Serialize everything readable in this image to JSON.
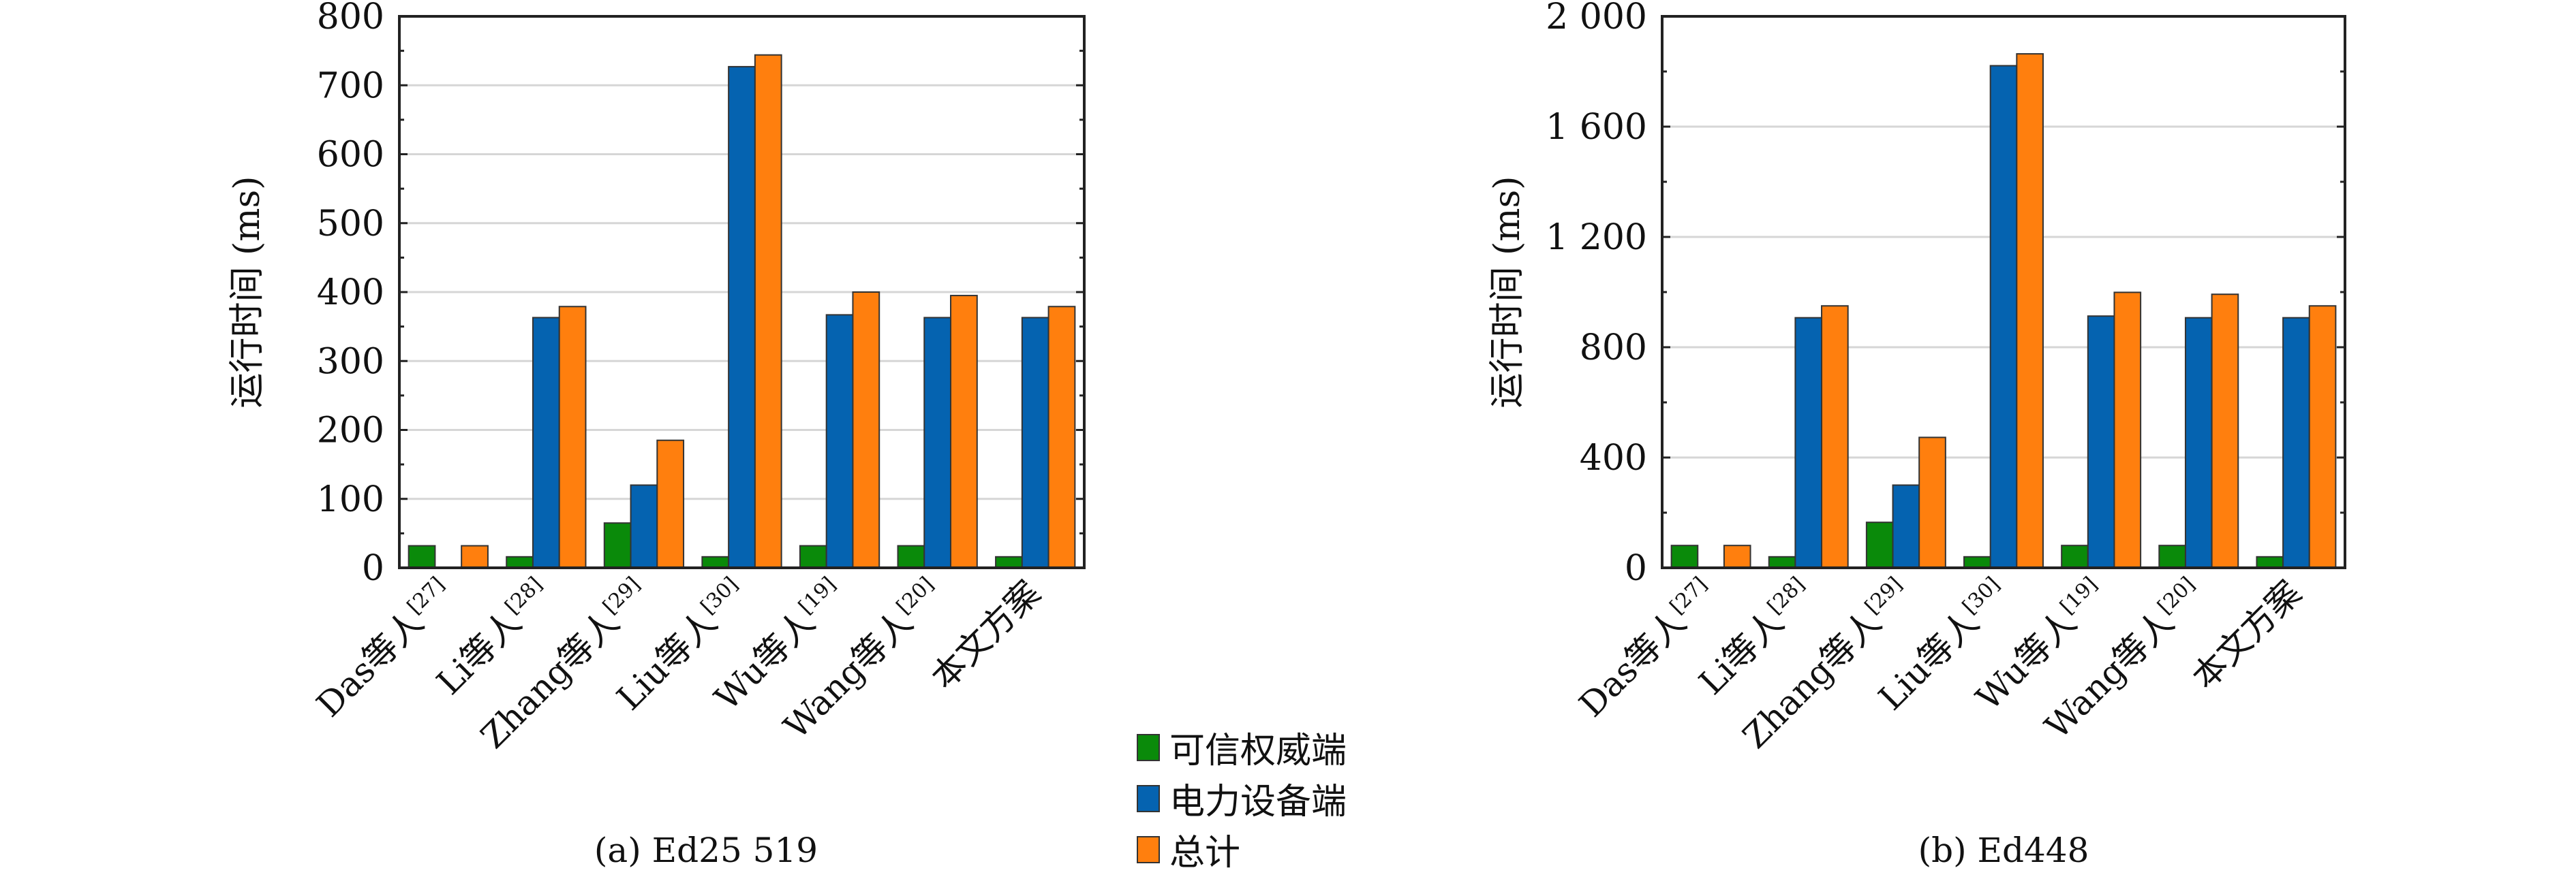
{
  "chart_data": [
    {
      "type": "bar",
      "caption": "(a) Ed25 519",
      "ylabel": "运行时间 (ms)",
      "xlabel": "",
      "ylim": [
        0,
        800
      ],
      "yticks": [
        0,
        100,
        200,
        300,
        400,
        500,
        600,
        700,
        800
      ],
      "ytick_labels": [
        "0",
        "100",
        "200",
        "300",
        "400",
        "500",
        "600",
        "700",
        "800"
      ],
      "minor_step": 50,
      "grid": true,
      "categories": [
        "Das等人[27]",
        "Li等人[28]",
        "Zhang等人[29]",
        "Liu等人[30]",
        "Wu等人[19]",
        "Wang等人[20]",
        "本文方案"
      ],
      "series": [
        {
          "name": "可信权威端",
          "values": [
            32,
            16,
            65,
            16,
            32,
            32,
            16
          ]
        },
        {
          "name": "电力设备端",
          "values": [
            0,
            363,
            120,
            727,
            367,
            363,
            363
          ]
        },
        {
          "name": "总计",
          "values": [
            32,
            379,
            185,
            744,
            400,
            395,
            379
          ]
        }
      ]
    },
    {
      "type": "bar",
      "caption": "(b) Ed448",
      "ylabel": "运行时间 (ms)",
      "xlabel": "",
      "ylim": [
        0,
        2000
      ],
      "yticks": [
        0,
        400,
        800,
        1200,
        1600,
        2000
      ],
      "ytick_labels": [
        "0",
        "400",
        "800",
        "1 200",
        "1 600",
        "2 000"
      ],
      "minor_step": 200,
      "grid": true,
      "categories": [
        "Das等人[27]",
        "Li等人[28]",
        "Zhang等人[29]",
        "Liu等人[30]",
        "Wu等人[19]",
        "Wang等人[20]",
        "本文方案"
      ],
      "series": [
        {
          "name": "可信权威端",
          "values": [
            81,
            40,
            165,
            40,
            81,
            81,
            40
          ]
        },
        {
          "name": "电力设备端",
          "values": [
            0,
            907,
            300,
            1821,
            913,
            907,
            907
          ]
        },
        {
          "name": "总计",
          "values": [
            81,
            950,
            473,
            1864,
            999,
            992,
            950
          ]
        }
      ]
    }
  ],
  "legend": {
    "position": "bottom-center",
    "items": [
      {
        "label": "可信权威端",
        "color": "#0a8a0a"
      },
      {
        "label": "电力设备端",
        "color": "#0563b0"
      },
      {
        "label": "总计",
        "color": "#ff7f0e"
      }
    ]
  }
}
